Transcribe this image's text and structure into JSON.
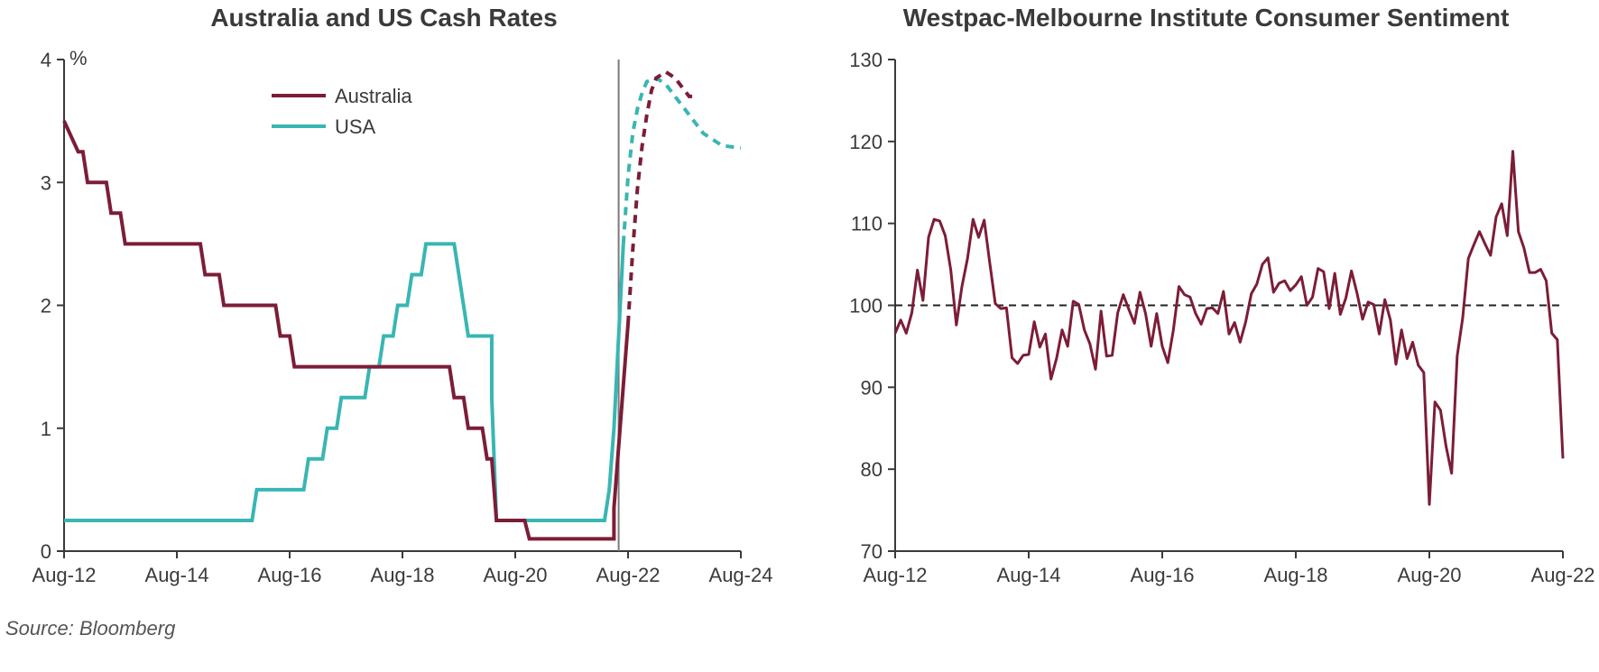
{
  "source_text": "Source: Bloomberg",
  "colors": {
    "maroon": "#7c1d37",
    "teal": "#39b6b3",
    "axis": "#3a3a3a",
    "text": "#3a3a3a",
    "vlabel": "#3a3a3a",
    "title": "#3a3a3a",
    "dash": "#222222",
    "vline": "#7a7a7a",
    "background": "#ffffff"
  },
  "chart1": {
    "title": "Australia and US Cash Rates",
    "y_unit_label": "%",
    "x_ticks": [
      "Aug-12",
      "Aug-14",
      "Aug-16",
      "Aug-18",
      "Aug-20",
      "Aug-22",
      "Aug-24"
    ],
    "y_ticks": [
      0,
      1,
      2,
      3,
      4
    ],
    "x_domain": [
      0,
      144
    ],
    "y_domain": [
      0,
      4
    ],
    "vline_x": 118,
    "legend": [
      {
        "label": "Australia",
        "color_key": "maroon"
      },
      {
        "label": "USA",
        "color_key": "teal"
      }
    ],
    "line_width": 4,
    "dash_pattern": "9,7",
    "title_fontsize": 28,
    "tick_fontsize": 22,
    "australia_solid": [
      [
        0,
        3.5
      ],
      [
        3,
        3.25
      ],
      [
        4,
        3.25
      ],
      [
        5,
        3.0
      ],
      [
        9,
        3.0
      ],
      [
        10,
        2.75
      ],
      [
        12,
        2.75
      ],
      [
        13,
        2.5
      ],
      [
        29,
        2.5
      ],
      [
        30,
        2.25
      ],
      [
        33,
        2.25
      ],
      [
        34,
        2.0
      ],
      [
        45,
        2.0
      ],
      [
        46,
        1.75
      ],
      [
        48,
        1.75
      ],
      [
        49,
        1.5
      ],
      [
        82,
        1.5
      ],
      [
        83,
        1.25
      ],
      [
        85,
        1.25
      ],
      [
        86,
        1.0
      ],
      [
        89,
        1.0
      ],
      [
        90,
        0.75
      ],
      [
        91,
        0.75
      ],
      [
        92,
        0.25
      ],
      [
        98,
        0.25
      ],
      [
        99,
        0.1
      ],
      [
        117,
        0.1
      ],
      [
        117,
        0.35
      ],
      [
        118,
        0.85
      ],
      [
        119,
        1.35
      ],
      [
        120,
        1.85
      ]
    ],
    "australia_dash": [
      [
        120,
        1.85
      ],
      [
        121,
        2.45
      ],
      [
        122,
        2.95
      ],
      [
        123,
        3.3
      ],
      [
        124,
        3.55
      ],
      [
        125,
        3.75
      ],
      [
        126,
        3.85
      ],
      [
        128,
        3.9
      ],
      [
        130,
        3.85
      ],
      [
        131,
        3.8
      ],
      [
        132,
        3.75
      ],
      [
        133,
        3.7
      ],
      [
        134,
        3.7
      ]
    ],
    "usa_solid": [
      [
        0,
        0.25
      ],
      [
        40,
        0.25
      ],
      [
        41,
        0.5
      ],
      [
        51,
        0.5
      ],
      [
        52,
        0.75
      ],
      [
        55,
        0.75
      ],
      [
        56,
        1.0
      ],
      [
        58,
        1.0
      ],
      [
        59,
        1.25
      ],
      [
        64,
        1.25
      ],
      [
        65,
        1.5
      ],
      [
        67,
        1.5
      ],
      [
        68,
        1.75
      ],
      [
        70,
        1.75
      ],
      [
        71,
        2.0
      ],
      [
        73,
        2.0
      ],
      [
        74,
        2.25
      ],
      [
        76,
        2.25
      ],
      [
        77,
        2.5
      ],
      [
        83,
        2.5
      ],
      [
        84,
        2.25
      ],
      [
        85,
        2.0
      ],
      [
        86,
        1.75
      ],
      [
        91,
        1.75
      ],
      [
        91,
        1.25
      ],
      [
        92,
        0.25
      ],
      [
        115,
        0.25
      ],
      [
        116,
        0.5
      ],
      [
        117,
        1.0
      ],
      [
        118,
        1.75
      ],
      [
        119,
        2.5
      ]
    ],
    "usa_dash": [
      [
        119,
        2.5
      ],
      [
        120,
        3.05
      ],
      [
        121,
        3.4
      ],
      [
        122,
        3.6
      ],
      [
        123,
        3.73
      ],
      [
        124,
        3.82
      ],
      [
        126,
        3.85
      ],
      [
        128,
        3.8
      ],
      [
        130,
        3.7
      ],
      [
        132,
        3.6
      ],
      [
        136,
        3.4
      ],
      [
        140,
        3.3
      ],
      [
        144,
        3.28
      ]
    ]
  },
  "chart2": {
    "title": "Westpac-Melbourne Institute Consumer Sentiment",
    "x_ticks": [
      "Aug-12",
      "Aug-14",
      "Aug-16",
      "Aug-18",
      "Aug-20",
      "Aug-22"
    ],
    "y_ticks": [
      70,
      80,
      90,
      100,
      110,
      120,
      130
    ],
    "x_domain": [
      0,
      120
    ],
    "y_domain": [
      70,
      130
    ],
    "line_width": 3,
    "dash_pattern": "8,6",
    "hline_y": 100,
    "title_fontsize": 28,
    "tick_fontsize": 22,
    "series": [
      [
        0,
        96.6
      ],
      [
        1,
        98.2
      ],
      [
        2,
        96.6
      ],
      [
        3,
        99.1
      ],
      [
        4,
        104.3
      ],
      [
        5,
        100.6
      ],
      [
        6,
        108.3
      ],
      [
        7,
        110.5
      ],
      [
        8,
        110.3
      ],
      [
        9,
        108.5
      ],
      [
        10,
        104.3
      ],
      [
        11,
        97.6
      ],
      [
        12,
        102.3
      ],
      [
        13,
        105.7
      ],
      [
        14,
        110.5
      ],
      [
        15,
        108.3
      ],
      [
        16,
        110.4
      ],
      [
        17,
        105.2
      ],
      [
        18,
        100.2
      ],
      [
        19,
        99.6
      ],
      [
        20,
        99.7
      ],
      [
        21,
        93.6
      ],
      [
        22,
        92.9
      ],
      [
        23,
        93.9
      ],
      [
        24,
        94.0
      ],
      [
        25,
        98.0
      ],
      [
        26,
        94.9
      ],
      [
        27,
        96.5
      ],
      [
        28,
        91.0
      ],
      [
        29,
        93.5
      ],
      [
        30,
        97.0
      ],
      [
        31,
        95.0
      ],
      [
        32,
        100.5
      ],
      [
        33,
        100.1
      ],
      [
        34,
        97.0
      ],
      [
        35,
        95.3
      ],
      [
        36,
        92.2
      ],
      [
        37,
        99.3
      ],
      [
        38,
        93.8
      ],
      [
        39,
        93.9
      ],
      [
        40,
        99.1
      ],
      [
        41,
        101.3
      ],
      [
        42,
        99.5
      ],
      [
        43,
        97.8
      ],
      [
        44,
        101.6
      ],
      [
        45,
        99.0
      ],
      [
        46,
        95.0
      ],
      [
        47,
        99.0
      ],
      [
        48,
        95.0
      ],
      [
        49,
        93.0
      ],
      [
        50,
        97.0
      ],
      [
        51,
        102.3
      ],
      [
        52,
        101.3
      ],
      [
        53,
        101.0
      ],
      [
        54,
        99.0
      ],
      [
        55,
        97.7
      ],
      [
        56,
        99.6
      ],
      [
        57,
        99.7
      ],
      [
        58,
        99.0
      ],
      [
        59,
        101.7
      ],
      [
        60,
        96.5
      ],
      [
        61,
        97.9
      ],
      [
        62,
        95.5
      ],
      [
        63,
        98.0
      ],
      [
        64,
        101.4
      ],
      [
        65,
        102.6
      ],
      [
        66,
        105.0
      ],
      [
        67,
        105.8
      ],
      [
        68,
        101.6
      ],
      [
        69,
        102.7
      ],
      [
        70,
        103.0
      ],
      [
        71,
        101.8
      ],
      [
        72,
        102.5
      ],
      [
        73,
        103.5
      ],
      [
        74,
        100.0
      ],
      [
        75,
        101.0
      ],
      [
        76,
        104.5
      ],
      [
        77,
        104.1
      ],
      [
        78,
        99.6
      ],
      [
        79,
        103.9
      ],
      [
        80,
        98.9
      ],
      [
        81,
        100.9
      ],
      [
        82,
        104.2
      ],
      [
        83,
        101.5
      ],
      [
        84,
        98.3
      ],
      [
        85,
        100.4
      ],
      [
        86,
        100.1
      ],
      [
        87,
        96.5
      ],
      [
        88,
        100.7
      ],
      [
        89,
        98.2
      ],
      [
        90,
        92.8
      ],
      [
        91,
        97.0
      ],
      [
        92,
        93.5
      ],
      [
        93,
        95.5
      ],
      [
        94,
        92.7
      ],
      [
        95,
        91.8
      ],
      [
        96,
        75.7
      ],
      [
        97,
        88.2
      ],
      [
        98,
        87.2
      ],
      [
        99,
        82.8
      ],
      [
        100,
        79.5
      ],
      [
        101,
        93.8
      ],
      [
        102,
        98.5
      ],
      [
        103,
        105.7
      ],
      [
        104,
        107.4
      ],
      [
        105,
        109.0
      ],
      [
        106,
        107.5
      ],
      [
        107,
        106.1
      ],
      [
        108,
        110.8
      ],
      [
        109,
        112.4
      ],
      [
        110,
        108.5
      ],
      [
        111,
        118.8
      ],
      [
        112,
        109.0
      ],
      [
        113,
        107.0
      ],
      [
        114,
        104.0
      ],
      [
        115,
        104.0
      ],
      [
        116,
        104.4
      ],
      [
        117,
        103.0
      ],
      [
        118,
        96.6
      ],
      [
        119,
        95.8
      ],
      [
        120,
        81.3
      ]
    ]
  }
}
